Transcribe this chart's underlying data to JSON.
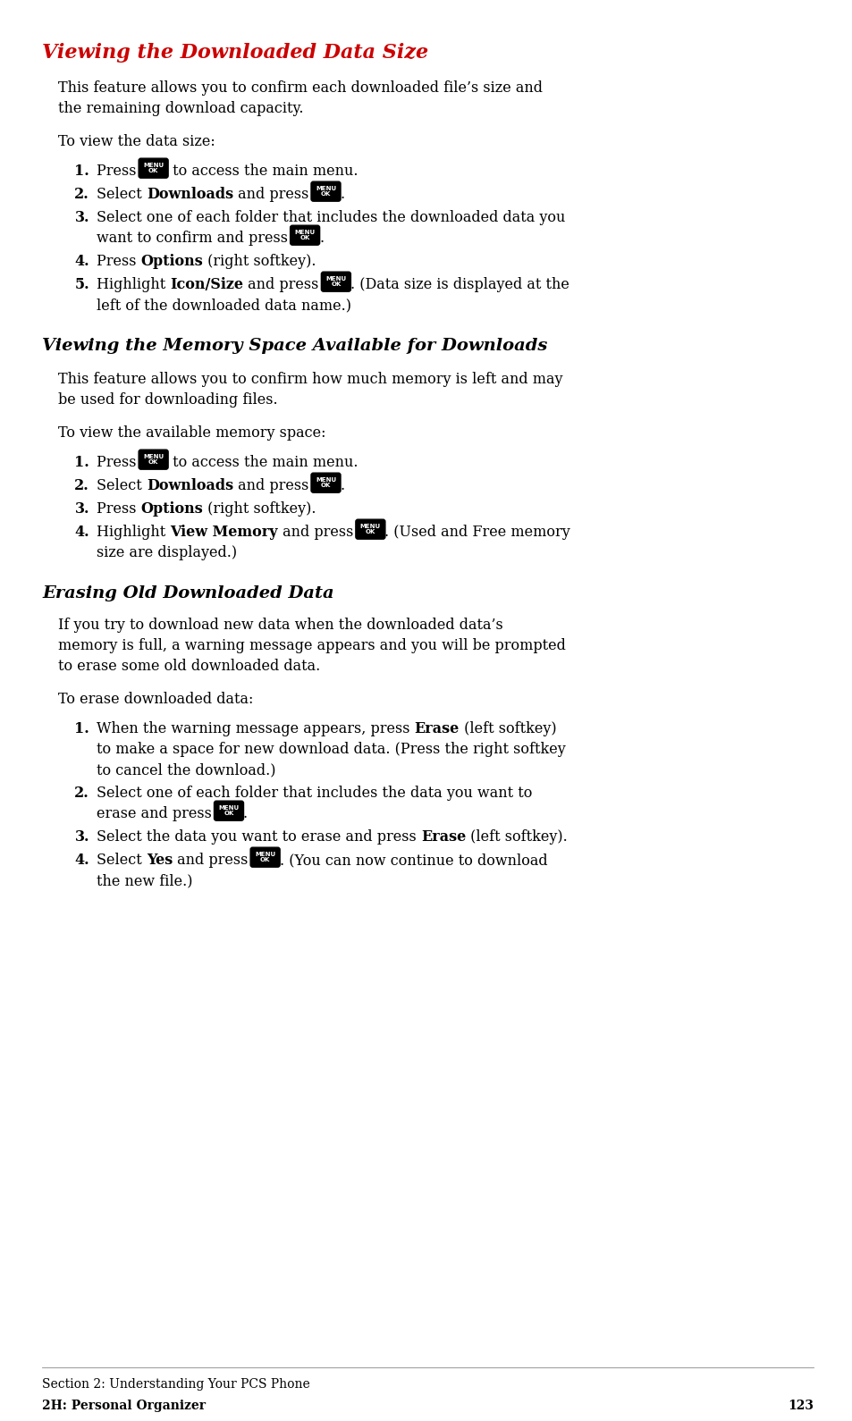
{
  "bg_color": "#ffffff",
  "title1": "Viewing the Downloaded Data Size",
  "title1_color": "#cc0000",
  "title2": "Viewing the Memory Space Available for Downloads",
  "title2_color": "#000000",
  "title3": "Erasing Old Downloaded Data",
  "title3_color": "#000000",
  "section1_intro": "This feature allows you to confirm each downloaded file’s size and\nthe remaining download capacity.",
  "section1_lead": "To view the data size:",
  "section2_intro": "This feature allows you to confirm how much memory is left and may\nbe used for downloading files.",
  "section2_lead": "To view the available memory space:",
  "section3_intro": "If you try to download new data when the downloaded data’s\nmemory is full, a warning message appears and you will be prompted\nto erase some old downloaded data.",
  "section3_lead": "To erase downloaded data:",
  "footer_section": "Section 2: Understanding Your PCS Phone",
  "footer_chapter": "2H: Personal Organizer",
  "footer_page": "123"
}
